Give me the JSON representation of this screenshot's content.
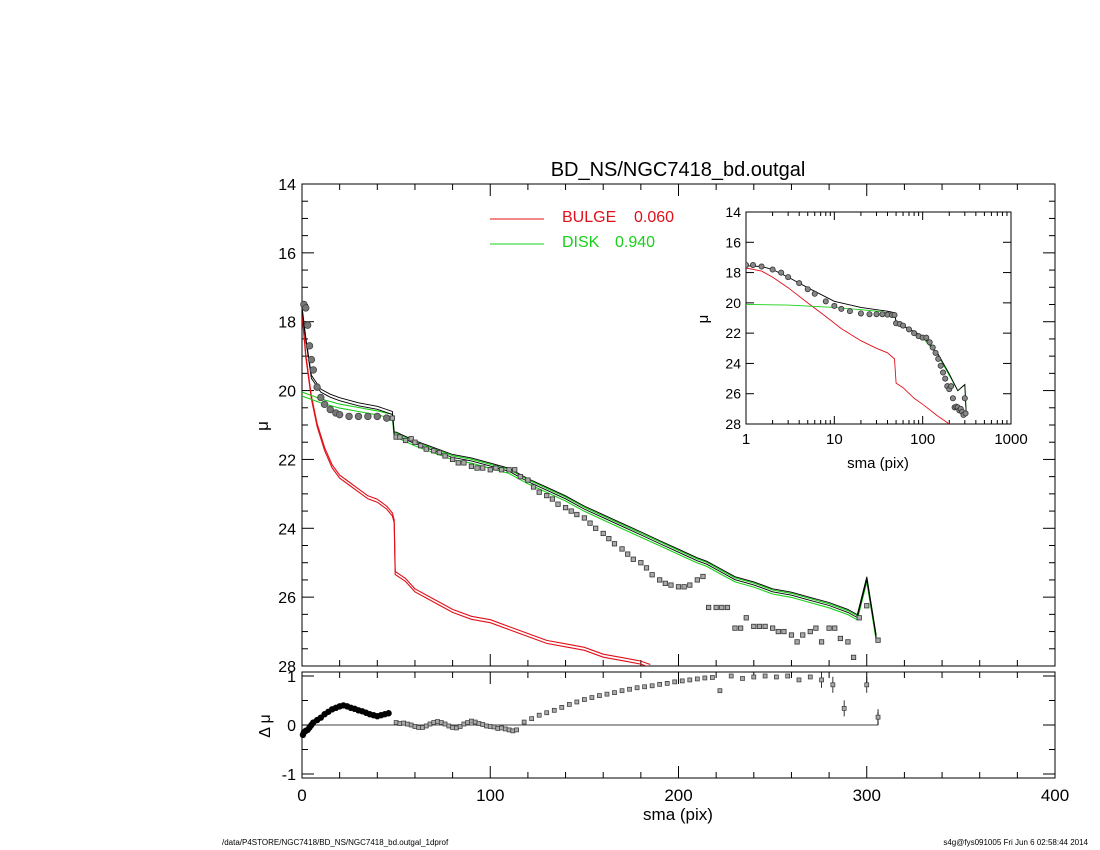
{
  "main": {
    "title": "BD_NS/NGC7418_bd.outgal",
    "ylabel": "μ",
    "xlabel": "sma (pix)",
    "ylim": [
      28,
      14
    ],
    "xlim": [
      0,
      400
    ],
    "yticks": [
      "14",
      "16",
      "18",
      "20",
      "22",
      "24",
      "26",
      "28"
    ],
    "xticks": [
      "0",
      "100",
      "200",
      "300",
      "400"
    ],
    "legend": [
      {
        "name": "BULGE",
        "value": "0.060",
        "color": "#e0101a"
      },
      {
        "name": "DISK",
        "value": "0.940",
        "color": "#18d018"
      }
    ]
  },
  "residual": {
    "ylabel": "Δ μ",
    "ylim": [
      -1,
      1
    ],
    "yticks": [
      "1",
      "0",
      "-1"
    ]
  },
  "inset": {
    "ylabel": "μ",
    "xlabel": "sma (pix)",
    "xscale": "log",
    "xlim": [
      1,
      1000
    ],
    "ylim": [
      28,
      14
    ],
    "yticks": [
      "14",
      "16",
      "18",
      "20",
      "22",
      "24",
      "26",
      "28"
    ],
    "xticks": [
      "1",
      "10",
      "100",
      "1000"
    ]
  },
  "footer": {
    "left": "/data/P4STORE/NGC7418/BD_NS/NGC7418_bd.outgal_1dprof",
    "right": "s4g@fys091005  Fri Jun  6 02:58:44 2014"
  },
  "colors": {
    "bulge": "#e0101a",
    "disk": "#18d018",
    "total": "#000000",
    "data": "#666666"
  },
  "chart_data": [
    {
      "type": "line",
      "title": "BD_NS/NGC7418_bd.outgal",
      "xlabel": "sma (pix)",
      "ylabel": "μ",
      "xlim": [
        0,
        400
      ],
      "ylim": [
        28,
        14
      ],
      "series": [
        {
          "name": "BULGE",
          "x": [
            0,
            2,
            5,
            8,
            12,
            16,
            20,
            25,
            30,
            35,
            40,
            45,
            48,
            49,
            49.5,
            55,
            60,
            70,
            80,
            90,
            100,
            110,
            120,
            130,
            140,
            150,
            160,
            170,
            180,
            185
          ],
          "y": [
            17.7,
            19.0,
            20.2,
            21.0,
            21.7,
            22.2,
            22.5,
            22.7,
            22.9,
            23.1,
            23.2,
            23.4,
            23.6,
            23.8,
            25.3,
            25.5,
            25.8,
            26.1,
            26.4,
            26.6,
            26.7,
            26.9,
            27.1,
            27.3,
            27.4,
            27.5,
            27.7,
            27.8,
            27.9,
            28.0
          ]
        },
        {
          "name": "DISK",
          "x": [
            0,
            10,
            20,
            30,
            40,
            48,
            49,
            50,
            60,
            70,
            80,
            90,
            100,
            110,
            120,
            130,
            140,
            150,
            160,
            170,
            180,
            190,
            200,
            210,
            215,
            220,
            230,
            240,
            250,
            260,
            270,
            280,
            290,
            295,
            300,
            305
          ],
          "y": [
            20.1,
            20.3,
            20.45,
            20.55,
            20.65,
            20.75,
            21.3,
            21.3,
            21.55,
            21.75,
            21.95,
            22.05,
            22.2,
            22.35,
            22.65,
            22.9,
            23.15,
            23.45,
            23.7,
            23.95,
            24.2,
            24.45,
            24.7,
            24.95,
            25.05,
            25.2,
            25.5,
            25.65,
            25.85,
            25.95,
            26.1,
            26.25,
            26.45,
            26.6,
            25.5,
            27.2
          ]
        },
        {
          "name": "",
          "x": [
            0,
            2,
            5,
            10,
            15,
            20,
            30,
            40,
            48,
            49,
            50,
            60,
            70,
            80,
            90,
            100,
            110,
            120,
            130,
            140,
            150,
            160,
            170,
            180,
            190,
            200,
            210,
            215,
            220,
            230,
            240,
            250,
            260,
            270,
            280,
            290,
            295,
            300,
            305
          ],
          "y": [
            17.6,
            18.5,
            19.6,
            20.0,
            20.15,
            20.25,
            20.4,
            20.5,
            20.65,
            21.25,
            21.25,
            21.5,
            21.7,
            21.9,
            22.0,
            22.15,
            22.3,
            22.6,
            22.85,
            23.1,
            23.4,
            23.65,
            23.9,
            24.15,
            24.4,
            24.65,
            24.9,
            25.0,
            25.15,
            25.45,
            25.6,
            25.8,
            25.9,
            26.05,
            26.2,
            26.4,
            26.55,
            25.45,
            27.15
          ]
        },
        {
          "name": "",
          "x": [
            1,
            2,
            3,
            4,
            5,
            6,
            8,
            10,
            12,
            15,
            18,
            20,
            25,
            30,
            35,
            40,
            45,
            48,
            50,
            52,
            55,
            58,
            60,
            63,
            66,
            70,
            73,
            76,
            80,
            83,
            86,
            90,
            93,
            96,
            100,
            103,
            106,
            110,
            113,
            116,
            120,
            123,
            126,
            130,
            133,
            136,
            140,
            143,
            146,
            150,
            153,
            156,
            160,
            163,
            166,
            170,
            173,
            176,
            180,
            183,
            186,
            190,
            193,
            196,
            200,
            203,
            206,
            210,
            213,
            216,
            220,
            223,
            226,
            230,
            233,
            236,
            240,
            243,
            246,
            250,
            253,
            256,
            260,
            263,
            266,
            270,
            273,
            276,
            280,
            283,
            286,
            290,
            293,
            296,
            300,
            306
          ],
          "y": [
            17.5,
            17.6,
            18.1,
            18.7,
            19.1,
            19.4,
            19.9,
            20.2,
            20.4,
            20.55,
            20.65,
            20.7,
            20.75,
            20.75,
            20.75,
            20.75,
            20.8,
            20.8,
            21.35,
            21.35,
            21.45,
            21.4,
            21.5,
            21.6,
            21.7,
            21.75,
            21.8,
            21.9,
            22.0,
            22.1,
            22.1,
            22.2,
            22.25,
            22.25,
            22.3,
            22.25,
            22.3,
            22.3,
            22.3,
            22.5,
            22.6,
            22.8,
            22.95,
            23.05,
            23.15,
            23.3,
            23.4,
            23.5,
            23.6,
            23.7,
            23.85,
            24.0,
            24.15,
            24.3,
            24.45,
            24.6,
            24.75,
            24.9,
            25.0,
            25.15,
            25.35,
            25.5,
            25.6,
            25.65,
            25.7,
            25.7,
            25.65,
            25.5,
            25.4,
            26.3,
            26.3,
            26.3,
            26.3,
            26.9,
            26.9,
            26.6,
            26.85,
            26.85,
            26.85,
            26.9,
            27.0,
            27.0,
            27.1,
            27.3,
            27.1,
            27.0,
            26.9,
            27.3,
            26.9,
            26.9,
            27.2,
            27.3,
            27.75,
            26.6,
            26.25,
            27.25
          ]
        }
      ]
    },
    {
      "type": "scatter",
      "ylabel": "Δ μ",
      "xlabel": "sma (pix)",
      "xlim": [
        0,
        400
      ],
      "ylim": [
        -1,
        1
      ],
      "series": [
        {
          "name": "",
          "x": [
            0.5,
            1,
            2,
            3,
            4,
            5,
            6,
            8,
            10,
            12,
            14,
            16,
            18,
            20,
            22,
            24,
            26,
            28,
            30,
            32,
            34,
            36,
            38,
            40,
            42,
            44,
            46,
            50,
            52,
            54,
            56,
            58,
            60,
            62,
            64,
            66,
            68,
            70,
            72,
            74,
            76,
            78,
            80,
            82,
            84,
            86,
            88,
            90,
            92,
            94,
            96,
            98,
            100,
            102,
            104,
            106,
            108,
            110,
            112,
            114,
            118,
            122,
            126,
            130,
            134,
            138,
            142,
            146,
            150,
            154,
            158,
            162,
            166,
            170,
            174,
            178,
            182,
            186,
            190,
            194,
            198,
            202,
            206,
            210,
            214,
            218,
            222,
            228,
            234,
            240,
            246,
            252,
            258,
            264,
            270,
            276,
            282,
            288,
            300,
            306
          ],
          "y": [
            -0.2,
            -0.15,
            -0.12,
            -0.1,
            -0.05,
            0.0,
            0.05,
            0.1,
            0.15,
            0.22,
            0.27,
            0.32,
            0.35,
            0.38,
            0.4,
            0.38,
            0.35,
            0.33,
            0.3,
            0.28,
            0.25,
            0.22,
            0.2,
            0.18,
            0.2,
            0.22,
            0.24,
            0.05,
            0.03,
            0.04,
            0.02,
            0.0,
            -0.03,
            -0.05,
            -0.05,
            -0.02,
            0.02,
            0.05,
            0.07,
            0.05,
            0.02,
            -0.02,
            -0.05,
            -0.06,
            -0.03,
            0.02,
            0.05,
            0.08,
            0.06,
            0.03,
            0.01,
            -0.02,
            -0.03,
            -0.04,
            -0.07,
            -0.06,
            -0.08,
            -0.1,
            -0.12,
            -0.1,
            0.06,
            0.13,
            0.2,
            0.25,
            0.3,
            0.36,
            0.42,
            0.47,
            0.52,
            0.56,
            0.6,
            0.63,
            0.66,
            0.7,
            0.73,
            0.76,
            0.78,
            0.8,
            0.83,
            0.85,
            0.88,
            0.9,
            0.92,
            0.94,
            0.96,
            0.97,
            0.7,
            1.0,
            0.95,
            0.98,
            1.0,
            0.98,
            1.0,
            0.92,
            0.98,
            0.92,
            0.82,
            0.34,
            0.82,
            0.16
          ]
        }
      ]
    },
    {
      "type": "line",
      "ylabel": "μ",
      "xlabel": "sma (pix)",
      "xscale": "log",
      "xlim": [
        1,
        1000
      ],
      "ylim": [
        28,
        14
      ],
      "series": [
        {
          "name": "",
          "x": [
            1,
            1.5,
            2,
            3,
            5,
            8,
            12,
            20,
            30,
            40,
            48,
            50,
            60,
            80,
            100,
            150,
            200
          ],
          "y": [
            17.7,
            17.9,
            18.3,
            19.0,
            20.0,
            20.9,
            21.7,
            22.5,
            23.0,
            23.3,
            23.7,
            25.3,
            25.6,
            26.3,
            26.7,
            27.5,
            28.0
          ]
        },
        {
          "name": "",
          "x": [
            1,
            3,
            10,
            20,
            30,
            40,
            48,
            50,
            60,
            80,
            100,
            150,
            200,
            250,
            300,
            310
          ],
          "y": [
            20.1,
            20.15,
            20.3,
            20.45,
            20.55,
            20.65,
            20.75,
            21.3,
            21.55,
            21.95,
            22.3,
            23.5,
            24.8,
            25.8,
            25.4,
            27.2
          ]
        },
        {
          "name": "",
          "x": [
            1,
            1.5,
            2,
            3,
            5,
            10,
            20,
            30,
            40,
            48,
            50,
            60,
            80,
            100,
            150,
            200,
            250,
            300,
            310
          ],
          "y": [
            17.55,
            17.6,
            17.8,
            18.3,
            19.0,
            19.9,
            20.3,
            20.45,
            20.55,
            20.65,
            21.25,
            21.5,
            21.9,
            22.2,
            23.4,
            24.7,
            25.8,
            25.4,
            27.1
          ]
        },
        {
          "name": "",
          "x": [
            1,
            1.2,
            1.5,
            2,
            2.5,
            3,
            4,
            5,
            6,
            8,
            10,
            12,
            15,
            20,
            25,
            30,
            35,
            40,
            45,
            48,
            50,
            55,
            60,
            70,
            80,
            90,
            100,
            110,
            120,
            130,
            140,
            150,
            160,
            170,
            180,
            190,
            200,
            210,
            220,
            230,
            240,
            250,
            260,
            270,
            280,
            290,
            300,
            306
          ],
          "y": [
            17.5,
            17.5,
            17.6,
            17.8,
            18.0,
            18.3,
            18.7,
            19.1,
            19.4,
            19.9,
            20.2,
            20.4,
            20.55,
            20.7,
            20.75,
            20.75,
            20.75,
            20.78,
            20.8,
            20.8,
            21.35,
            21.4,
            21.5,
            21.75,
            22.0,
            22.2,
            22.3,
            22.3,
            22.6,
            22.95,
            23.3,
            23.7,
            24.15,
            24.6,
            25.0,
            25.5,
            25.7,
            25.5,
            26.3,
            26.9,
            26.85,
            26.9,
            27.1,
            27.0,
            27.2,
            27.4,
            26.3,
            27.3
          ]
        }
      ]
    }
  ]
}
